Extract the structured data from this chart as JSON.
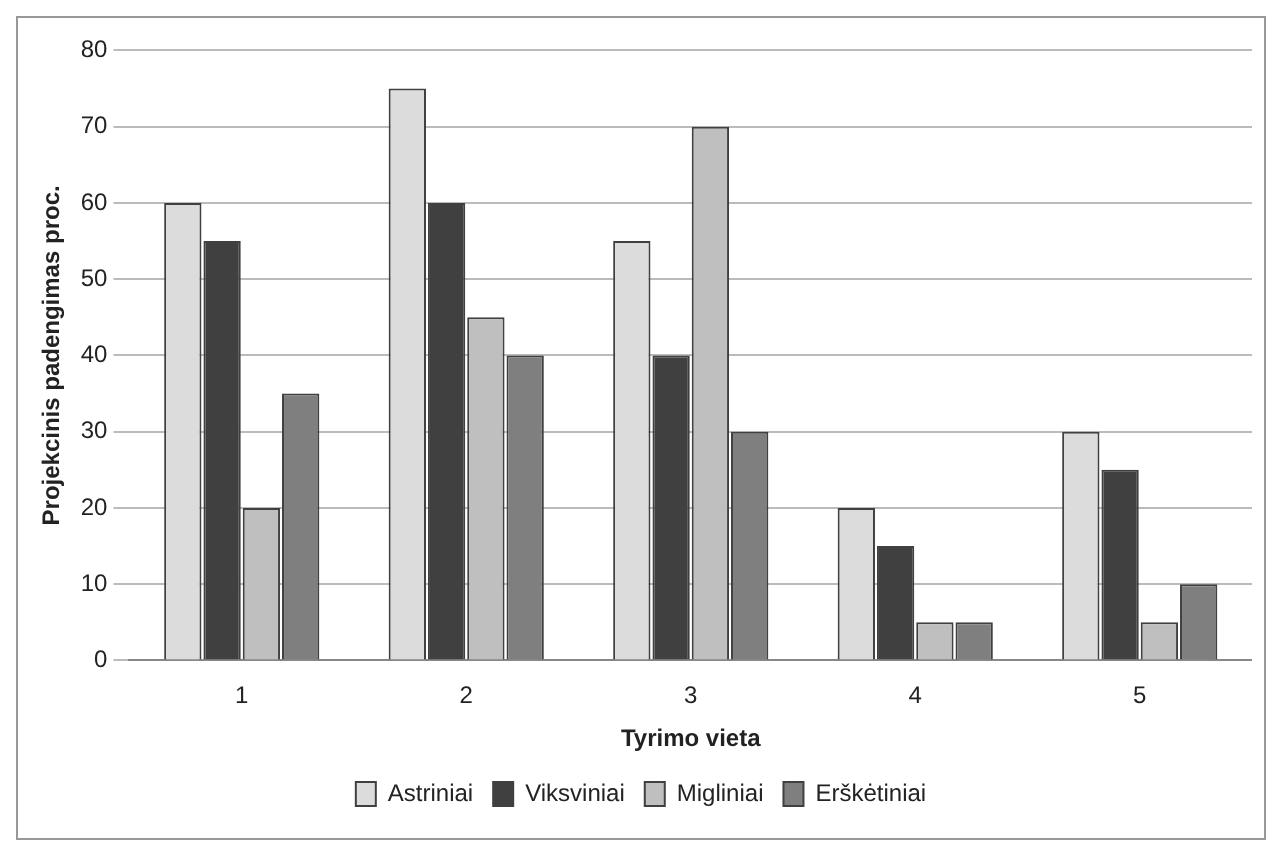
{
  "chart_data": {
    "type": "bar",
    "xlabel": "Tyrimo vieta",
    "ylabel": "Projekcinis padengimas proc.",
    "categories": [
      "1",
      "2",
      "3",
      "4",
      "5"
    ],
    "series": [
      {
        "name": "Astriniai",
        "color": "#dcdcdc",
        "values": [
          60,
          75,
          55,
          20,
          30
        ]
      },
      {
        "name": "Viksviniai",
        "color": "#404040",
        "values": [
          55,
          60,
          40,
          15,
          25
        ]
      },
      {
        "name": "Migliniai",
        "color": "#bfbfbf",
        "values": [
          20,
          45,
          70,
          5,
          5
        ]
      },
      {
        "name": "Erškėtiniai",
        "color": "#7f7f7f",
        "values": [
          35,
          40,
          30,
          5,
          10
        ]
      }
    ],
    "ylim": [
      0,
      80
    ],
    "yticks": [
      0,
      10,
      20,
      30,
      40,
      50,
      60,
      70,
      80
    ],
    "grid": "y",
    "legend": "bottom"
  }
}
